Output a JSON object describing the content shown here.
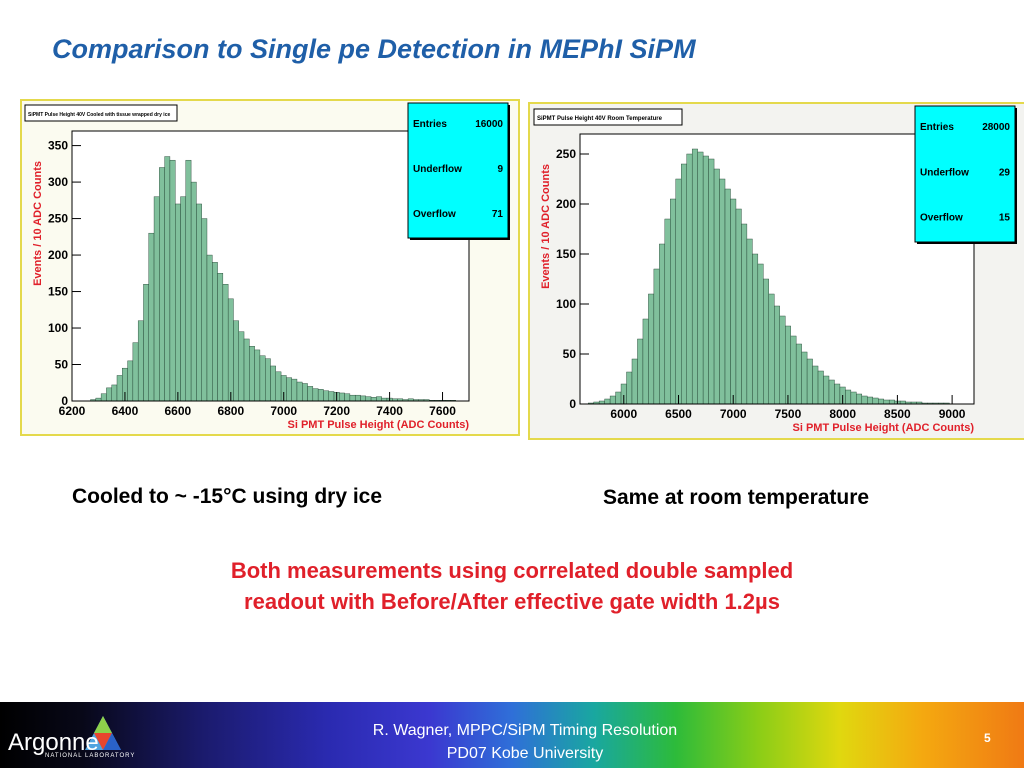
{
  "slide": {
    "title": "Comparison to Single pe Detection in MEPhI SiPM",
    "caption_left": "Cooled to ~ -15°C using dry ice",
    "caption_right": "Same at room temperature",
    "note_line1": "Both measurements using correlated double sampled",
    "note_line2": "readout with Before/After effective gate width 1.2µs"
  },
  "footer": {
    "logo_text": "Argonne",
    "logo_sub": "NATIONAL LABORATORY",
    "line1": "R. Wagner, MPPC/SiPM Timing Resolution",
    "line2": "PD07 Kobe University",
    "page": "5"
  },
  "colors": {
    "fill": "#80c09c",
    "axis_label": "#e0202a",
    "stats_box": "#00ffff",
    "title_blue": "#1f5fa8"
  },
  "chart_data": [
    {
      "type": "bar",
      "title": "SiPMT Pulse Height 40V   Cooled with tissue wrapped dry ice",
      "xlabel": "Si PMT Pulse Height  (ADC Counts)",
      "ylabel": "Events / 10 ADC Counts",
      "xlim": [
        6200,
        7700
      ],
      "ylim": [
        0,
        370
      ],
      "xticks": [
        6200,
        6400,
        6600,
        6800,
        7000,
        7200,
        7400,
        7600
      ],
      "yticks": [
        0,
        50,
        100,
        150,
        200,
        250,
        300,
        350
      ],
      "stats": [
        {
          "label": "Entries",
          "value": "16000"
        },
        {
          "label": "Underflow",
          "value": "9"
        },
        {
          "label": "Overflow",
          "value": "71"
        }
      ],
      "x": [
        6280,
        6300,
        6320,
        6340,
        6360,
        6380,
        6400,
        6420,
        6440,
        6460,
        6480,
        6500,
        6520,
        6540,
        6560,
        6580,
        6600,
        6620,
        6640,
        6660,
        6680,
        6700,
        6720,
        6740,
        6760,
        6780,
        6800,
        6820,
        6840,
        6860,
        6880,
        6900,
        6920,
        6940,
        6960,
        6980,
        7000,
        7020,
        7040,
        7060,
        7080,
        7100,
        7120,
        7140,
        7160,
        7180,
        7200,
        7220,
        7240,
        7260,
        7280,
        7300,
        7320,
        7340,
        7360,
        7380,
        7400,
        7420,
        7440,
        7460,
        7480,
        7500,
        7520,
        7540,
        7560,
        7580,
        7600,
        7620,
        7640,
        7660
      ],
      "values": [
        2,
        4,
        10,
        18,
        22,
        35,
        45,
        55,
        80,
        110,
        160,
        230,
        280,
        320,
        335,
        330,
        270,
        280,
        330,
        300,
        270,
        250,
        200,
        190,
        175,
        160,
        140,
        110,
        95,
        85,
        75,
        70,
        62,
        58,
        48,
        40,
        35,
        32,
        30,
        26,
        24,
        20,
        17,
        16,
        14,
        13,
        12,
        11,
        10,
        8,
        8,
        7,
        6,
        5,
        6,
        4,
        4,
        3,
        3,
        2,
        3,
        2,
        2,
        2,
        1,
        1,
        1,
        1,
        1,
        0
      ]
    },
    {
      "type": "bar",
      "title": "SiPMT Pulse Height 40V   Room Temperature",
      "xlabel": "Si PMT Pulse Height  (ADC Counts)",
      "ylabel": "Events / 10 ADC Counts",
      "xlim": [
        5600,
        9200
      ],
      "ylim": [
        0,
        270
      ],
      "xticks": [
        6000,
        6500,
        7000,
        7500,
        8000,
        8500,
        9000
      ],
      "yticks": [
        0,
        50,
        100,
        150,
        200,
        250
      ],
      "stats": [
        {
          "label": "Entries",
          "value": "28000"
        },
        {
          "label": "Underflow",
          "value": "29"
        },
        {
          "label": "Overflow",
          "value": "15"
        }
      ],
      "x": [
        5700,
        5750,
        5800,
        5850,
        5900,
        5950,
        6000,
        6050,
        6100,
        6150,
        6200,
        6250,
        6300,
        6350,
        6400,
        6450,
        6500,
        6550,
        6600,
        6650,
        6700,
        6750,
        6800,
        6850,
        6900,
        6950,
        7000,
        7050,
        7100,
        7150,
        7200,
        7250,
        7300,
        7350,
        7400,
        7450,
        7500,
        7550,
        7600,
        7650,
        7700,
        7750,
        7800,
        7850,
        7900,
        7950,
        8000,
        8050,
        8100,
        8150,
        8200,
        8250,
        8300,
        8350,
        8400,
        8450,
        8500,
        8550,
        8600,
        8650,
        8700,
        8750,
        8800,
        8850,
        8900,
        8950,
        9000,
        9050
      ],
      "values": [
        1,
        2,
        3,
        5,
        8,
        12,
        20,
        32,
        45,
        65,
        85,
        110,
        135,
        160,
        185,
        205,
        225,
        240,
        250,
        255,
        252,
        248,
        245,
        235,
        225,
        215,
        205,
        195,
        180,
        165,
        150,
        140,
        125,
        110,
        98,
        88,
        78,
        68,
        60,
        52,
        45,
        38,
        33,
        28,
        24,
        20,
        17,
        14,
        12,
        10,
        8,
        7,
        6,
        5,
        4,
        4,
        3,
        3,
        2,
        2,
        2,
        1,
        1,
        1,
        1,
        1,
        0,
        0
      ]
    }
  ]
}
